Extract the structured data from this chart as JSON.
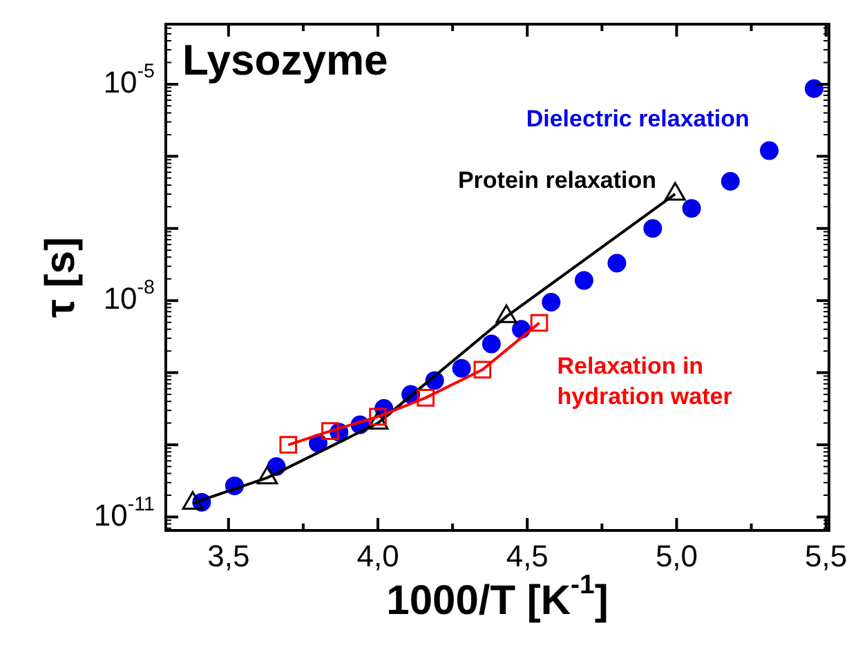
{
  "chart_data": {
    "type": "scatter",
    "title": "Lysozyme",
    "xlabel": "1000/T [K$^{-1}$]",
    "ylabel": "τ [s]",
    "log": "y",
    "grid": false,
    "legend": false,
    "xlim": [
      3.29,
      5.51
    ],
    "ylim": [
      6.5e-12,
      6.8e-05
    ],
    "xticks": [
      {
        "value": 3.5,
        "label": "3,5"
      },
      {
        "value": 3.75,
        "label": null
      },
      {
        "value": 4.0,
        "label": "4,0"
      },
      {
        "value": 4.25,
        "label": null
      },
      {
        "value": 4.5,
        "label": "4,5"
      },
      {
        "value": 4.75,
        "label": null
      },
      {
        "value": 5.0,
        "label": "5,0"
      },
      {
        "value": 5.25,
        "label": null
      },
      {
        "value": 5.5,
        "label": "5,5"
      }
    ],
    "yticks": [
      {
        "value": 1e-11,
        "label": "10$^{-11}$"
      },
      {
        "value": 1e-10,
        "label": null
      },
      {
        "value": 1e-09,
        "label": null
      },
      {
        "value": 1e-08,
        "label": "10$^{-8}$"
      },
      {
        "value": 1e-07,
        "label": null
      },
      {
        "value": 1e-06,
        "label": null
      },
      {
        "value": 1e-05,
        "label": "10$^{-5}$"
      }
    ],
    "series": [
      {
        "name": "Dielectric relaxation",
        "type": "scatter",
        "marker": "circle",
        "color": "#0000ee",
        "x": [
          3.41,
          3.52,
          3.66,
          3.8,
          3.87,
          3.94,
          4.02,
          4.11,
          4.19,
          4.28,
          4.38,
          4.48,
          4.58,
          4.69,
          4.8,
          4.92,
          5.05,
          5.18,
          5.31,
          5.46
        ],
        "values": [
          1.6e-11,
          2.7e-11,
          5e-11,
          1.05e-10,
          1.5e-10,
          1.9e-10,
          3.2e-10,
          5e-10,
          7.8e-10,
          1.15e-09,
          2.5e-09,
          4e-09,
          9.5e-09,
          1.9e-08,
          3.3e-08,
          1e-07,
          1.9e-07,
          4.5e-07,
          1.2e-06,
          8.7e-06
        ]
      },
      {
        "name": "Protein relaxation",
        "type": "line",
        "marker": "triangle",
        "color": "#000000",
        "x": [
          3.38,
          3.63,
          4.0,
          4.43,
          4.995
        ],
        "values": [
          1.55e-11,
          3.5e-11,
          2e-10,
          6e-09,
          3e-07
        ]
      },
      {
        "name": "Relaxation in hydration water",
        "type": "line",
        "marker": "square",
        "color": "#ff0000",
        "x": [
          3.7,
          3.84,
          4.0,
          4.16,
          4.35,
          4.54
        ],
        "values": [
          1e-10,
          1.55e-10,
          2.45e-10,
          4.5e-10,
          1.1e-09,
          4.9e-09
        ]
      }
    ]
  }
}
